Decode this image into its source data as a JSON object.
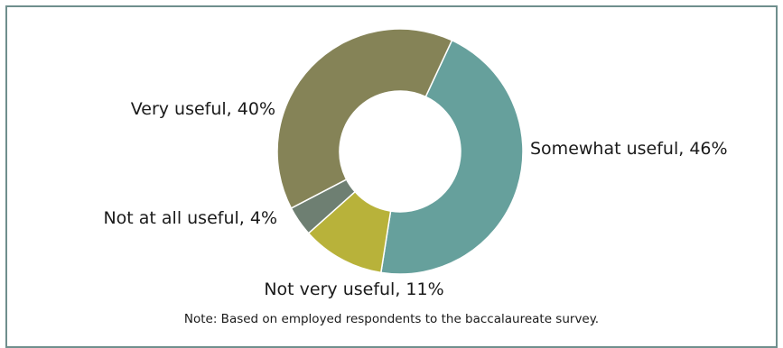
{
  "chart_data": {
    "type": "pie",
    "donut": true,
    "categories": [
      "Somewhat useful",
      "Not very useful",
      "Not at all useful",
      "Very useful"
    ],
    "values": [
      46,
      11,
      4,
      40
    ],
    "colors": [
      "#66a09c",
      "#b8b23a",
      "#6e7f72",
      "#858357"
    ],
    "labels": [
      "Somewhat useful, 46%",
      "Not very useful, 11%",
      "Not at all useful, 4%",
      "Very useful, 40%"
    ],
    "note": "Note: Based on employed respondents to the baccalaureate survey."
  },
  "colors": {
    "frame_border": "#6f8f8d",
    "slice_separator": "#ffffff",
    "text": "#1a1a1a"
  }
}
